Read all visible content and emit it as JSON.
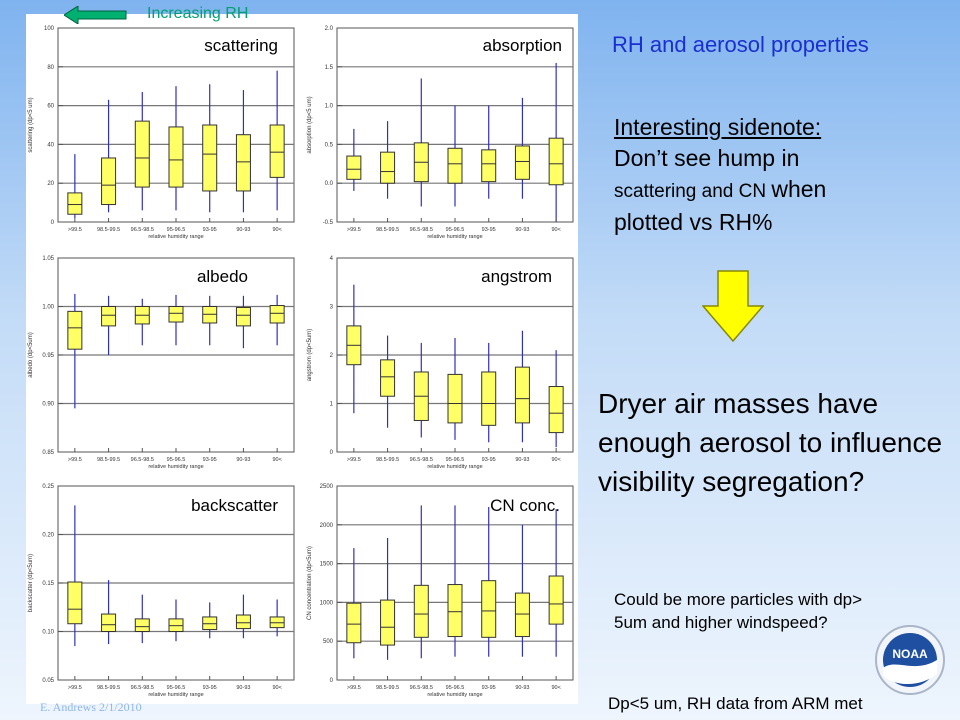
{
  "header": {
    "rh_label": "Increasing RH",
    "title": "RH and aerosol properties"
  },
  "sidenote": {
    "line1": "Interesting sidenote:",
    "line2": "Don’t see hump in",
    "line3a": "scattering and CN ",
    "line3b": "when",
    "line4": "plotted vs RH%"
  },
  "dryer_text": "Dryer air masses have enough aerosol to influence visibility segregation?",
  "could_text": [
    "Could be more particles with dp>",
    "5um and higher windspeed?"
  ],
  "dp_text": "Dp<5 um, RH data from ARM met",
  "footer_text": "E. Andrews  2/1/2010",
  "logo_text": "NOAA",
  "colors": {
    "box_fill": "#ffff66",
    "whisker": "#3030c0",
    "arrow_green": "#00b070",
    "title_blue": "#1a2fd0"
  },
  "chart_data": [
    {
      "type": "box",
      "title": "scattering",
      "ylabel": "scattering (dp<5 um)",
      "xlabel": "relative humidity range",
      "categories": [
        ">99.5",
        "98.5-99.5",
        "96.5-98.5",
        "95-96.5",
        "93-95",
        "90-93",
        "90<"
      ],
      "ylim": [
        0,
        100
      ],
      "yticks": [
        0,
        20,
        40,
        60,
        80,
        100
      ],
      "ytick_labels": [
        "0",
        "20",
        "40",
        "60",
        "80",
        "100"
      ],
      "boxes": [
        {
          "min": 2,
          "q1": 4,
          "median": 9,
          "q3": 15,
          "max": 35
        },
        {
          "min": 5,
          "q1": 9,
          "median": 19,
          "q3": 33,
          "max": 63
        },
        {
          "min": 6,
          "q1": 18,
          "median": 33,
          "q3": 52,
          "max": 67
        },
        {
          "min": 6,
          "q1": 18,
          "median": 32,
          "q3": 49,
          "max": 70
        },
        {
          "min": 5,
          "q1": 16,
          "median": 35,
          "q3": 50,
          "max": 71
        },
        {
          "min": 5,
          "q1": 16,
          "median": 31,
          "q3": 45,
          "max": 68
        },
        {
          "min": 6,
          "q1": 23,
          "median": 36,
          "q3": 50,
          "max": 78
        }
      ]
    },
    {
      "type": "box",
      "title": "absorption",
      "ylabel": "absorption (dp<5 um)",
      "xlabel": "relative humidity range",
      "categories": [
        ">99.5",
        "98.5-99.5",
        "96.5-98.5",
        "95-96.5",
        "93-95",
        "90-93",
        "90<"
      ],
      "ylim": [
        -0.5,
        2.0
      ],
      "yticks": [
        -0.5,
        0.0,
        0.5,
        1.0,
        1.5,
        2.0
      ],
      "ytick_labels": [
        "-0.5",
        "0.0",
        "0.5",
        "1.0",
        "1.5",
        "2.0"
      ],
      "boxes": [
        {
          "min": -0.1,
          "q1": 0.05,
          "median": 0.18,
          "q3": 0.35,
          "max": 0.7
        },
        {
          "min": -0.2,
          "q1": 0.0,
          "median": 0.15,
          "q3": 0.4,
          "max": 0.8
        },
        {
          "min": -0.3,
          "q1": 0.02,
          "median": 0.27,
          "q3": 0.52,
          "max": 1.35
        },
        {
          "min": -0.3,
          "q1": 0.0,
          "median": 0.25,
          "q3": 0.45,
          "max": 1.0
        },
        {
          "min": -0.2,
          "q1": 0.02,
          "median": 0.25,
          "q3": 0.43,
          "max": 1.0
        },
        {
          "min": -0.2,
          "q1": 0.05,
          "median": 0.28,
          "q3": 0.48,
          "max": 1.1
        },
        {
          "min": -0.5,
          "q1": -0.02,
          "median": 0.25,
          "q3": 0.58,
          "max": 1.55
        }
      ]
    },
    {
      "type": "box",
      "title": "albedo",
      "ylabel": "albedo (dp<5um)",
      "xlabel": "relative humidity range",
      "categories": [
        ">99.5",
        "98.5-99.5",
        "96.5-98.5",
        "95-96.5",
        "93-95",
        "90-93",
        "90<"
      ],
      "ylim": [
        0.85,
        1.05
      ],
      "yticks": [
        0.85,
        0.9,
        0.95,
        1.0,
        1.05
      ],
      "ytick_labels": [
        "0.85",
        "0.90",
        "0.95",
        "1.00",
        "1.05"
      ],
      "boxes": [
        {
          "min": 0.895,
          "q1": 0.956,
          "median": 0.978,
          "q3": 0.995,
          "max": 1.013
        },
        {
          "min": 0.95,
          "q1": 0.98,
          "median": 0.991,
          "q3": 1.0,
          "max": 1.011
        },
        {
          "min": 0.96,
          "q1": 0.982,
          "median": 0.991,
          "q3": 1.0,
          "max": 1.008
        },
        {
          "min": 0.96,
          "q1": 0.984,
          "median": 0.993,
          "q3": 1.0,
          "max": 1.012
        },
        {
          "min": 0.96,
          "q1": 0.983,
          "median": 0.992,
          "q3": 1.0,
          "max": 1.011
        },
        {
          "min": 0.957,
          "q1": 0.98,
          "median": 0.991,
          "q3": 0.999,
          "max": 1.011
        },
        {
          "min": 0.96,
          "q1": 0.983,
          "median": 0.993,
          "q3": 1.001,
          "max": 1.012
        }
      ]
    },
    {
      "type": "box",
      "title": "angstrom",
      "ylabel": "angstrom (dp<5um)",
      "xlabel": "relative humidity range",
      "categories": [
        ">99.5",
        "98.5-99.5",
        "96.5-98.5",
        "95-96.5",
        "93-95",
        "90-93",
        "90<"
      ],
      "ylim": [
        0,
        4
      ],
      "yticks": [
        0,
        1,
        2,
        3,
        4
      ],
      "ytick_labels": [
        "0",
        "1",
        "2",
        "3",
        "4"
      ],
      "boxes": [
        {
          "min": 0.8,
          "q1": 1.8,
          "median": 2.2,
          "q3": 2.6,
          "max": 3.45
        },
        {
          "min": 0.5,
          "q1": 1.15,
          "median": 1.55,
          "q3": 1.9,
          "max": 2.4
        },
        {
          "min": 0.3,
          "q1": 0.65,
          "median": 1.15,
          "q3": 1.65,
          "max": 2.25
        },
        {
          "min": 0.25,
          "q1": 0.6,
          "median": 1.0,
          "q3": 1.6,
          "max": 2.35
        },
        {
          "min": 0.2,
          "q1": 0.55,
          "median": 1.0,
          "q3": 1.65,
          "max": 2.25
        },
        {
          "min": 0.2,
          "q1": 0.6,
          "median": 1.1,
          "q3": 1.75,
          "max": 2.5
        },
        {
          "min": 0.1,
          "q1": 0.4,
          "median": 0.8,
          "q3": 1.35,
          "max": 2.1
        }
      ]
    },
    {
      "type": "box",
      "title": "backscatter",
      "ylabel": "backscatter (dp<5um)",
      "xlabel": "relative humidity range",
      "categories": [
        ">99.5",
        "98.5-99.5",
        "96.5-98.5",
        "95-96.5",
        "93-95",
        "90-93",
        "90<"
      ],
      "ylim": [
        0.05,
        0.25
      ],
      "yticks": [
        0.05,
        0.1,
        0.15,
        0.2,
        0.25
      ],
      "ytick_labels": [
        "0.05",
        "0.10",
        "0.15",
        "0.20",
        "0.25"
      ],
      "boxes": [
        {
          "min": 0.085,
          "q1": 0.108,
          "median": 0.123,
          "q3": 0.151,
          "max": 0.23
        },
        {
          "min": 0.087,
          "q1": 0.1,
          "median": 0.107,
          "q3": 0.118,
          "max": 0.153
        },
        {
          "min": 0.088,
          "q1": 0.1,
          "median": 0.105,
          "q3": 0.113,
          "max": 0.138
        },
        {
          "min": 0.09,
          "q1": 0.1,
          "median": 0.106,
          "q3": 0.113,
          "max": 0.133
        },
        {
          "min": 0.093,
          "q1": 0.102,
          "median": 0.108,
          "q3": 0.115,
          "max": 0.13
        },
        {
          "min": 0.093,
          "q1": 0.103,
          "median": 0.109,
          "q3": 0.117,
          "max": 0.138
        },
        {
          "min": 0.095,
          "q1": 0.104,
          "median": 0.109,
          "q3": 0.115,
          "max": 0.133
        }
      ]
    },
    {
      "type": "box",
      "title": "CN conc.",
      "ylabel": "CN concentration (dp<5um)",
      "xlabel": "relative humidity range",
      "categories": [
        ">99.5",
        "98.5-99.5",
        "96.5-98.5",
        "95-96.5",
        "93-95",
        "90-93",
        "90<"
      ],
      "ylim": [
        0,
        2500
      ],
      "yticks": [
        0,
        500,
        1000,
        1500,
        2000,
        2500
      ],
      "ytick_labels": [
        "0",
        "500",
        "1000",
        "1500",
        "2000",
        "2500"
      ],
      "boxes": [
        {
          "min": 280,
          "q1": 480,
          "median": 720,
          "q3": 990,
          "max": 1700
        },
        {
          "min": 260,
          "q1": 450,
          "median": 680,
          "q3": 1030,
          "max": 1830
        },
        {
          "min": 280,
          "q1": 550,
          "median": 850,
          "q3": 1220,
          "max": 2250
        },
        {
          "min": 300,
          "q1": 560,
          "median": 880,
          "q3": 1230,
          "max": 2250
        },
        {
          "min": 300,
          "q1": 550,
          "median": 890,
          "q3": 1280,
          "max": 2230
        },
        {
          "min": 300,
          "q1": 560,
          "median": 850,
          "q3": 1120,
          "max": 2000
        },
        {
          "min": 300,
          "q1": 720,
          "median": 980,
          "q3": 1340,
          "max": 2200
        }
      ]
    }
  ]
}
